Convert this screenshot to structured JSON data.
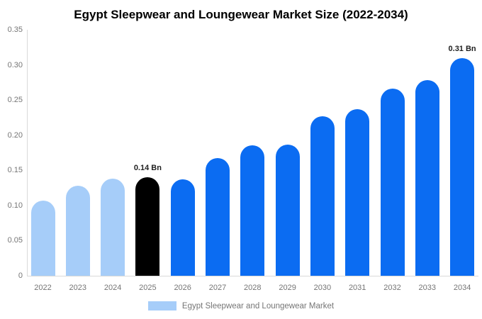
{
  "title": "Egypt Sleepwear and Loungewear Market Size (2022-2034)",
  "legend": {
    "label": "Egypt Sleepwear and Loungewear Market"
  },
  "colors": {
    "historical": "#A6CDF9",
    "base_year": "#000000",
    "forecast": "#0B6CF2",
    "axis_line": "#D9D9D9",
    "tick_text": "#757575",
    "annotation_text": "#1F1F1F",
    "background": "#FFFFFF"
  },
  "y_axis": {
    "tick_labels": [
      "0.35",
      "0.30",
      "0.25",
      "0.20",
      "0.15",
      "0.10",
      "0.05",
      "0"
    ],
    "tick_values": [
      0.35,
      0.3,
      0.25,
      0.2,
      0.15,
      0.1,
      0.05,
      0
    ]
  },
  "chart_data": {
    "type": "bar",
    "title": "Egypt Sleepwear and Loungewear Market Size (2022-2034)",
    "categories": [
      "2022",
      "2023",
      "2024",
      "2025",
      "2026",
      "2027",
      "2028",
      "2029",
      "2030",
      "2031",
      "2032",
      "2033",
      "2034"
    ],
    "values": [
      0.107,
      0.128,
      0.138,
      0.14,
      0.137,
      0.167,
      0.186,
      0.187,
      0.227,
      0.237,
      0.266,
      0.278,
      0.31
    ],
    "segment_roles": [
      "historical",
      "historical",
      "historical",
      "base_year",
      "forecast",
      "forecast",
      "forecast",
      "forecast",
      "forecast",
      "forecast",
      "forecast",
      "forecast",
      "forecast"
    ],
    "annotations": [
      {
        "index": 3,
        "label": "0.14 Bn"
      },
      {
        "index": 12,
        "label": "0.31 Bn"
      }
    ],
    "xlabel": "",
    "ylabel": "",
    "ylim": [
      0,
      0.35
    ],
    "grid": false,
    "legend_entries": [
      "Egypt Sleepwear and Loungewear Market"
    ],
    "legend_position": "bottom",
    "unit": "Bn"
  }
}
